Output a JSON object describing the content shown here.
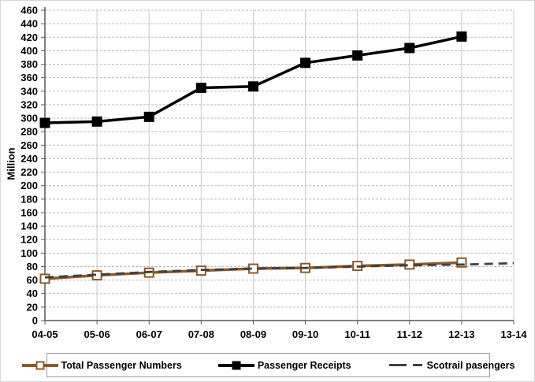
{
  "chart_data": {
    "type": "line",
    "title": "",
    "xlabel": "",
    "ylabel": "Million",
    "ylim": [
      0,
      460
    ],
    "ytick_step": 20,
    "yticks": [
      0,
      20,
      40,
      60,
      80,
      100,
      120,
      140,
      160,
      180,
      200,
      220,
      240,
      260,
      280,
      300,
      320,
      340,
      360,
      380,
      400,
      420,
      440,
      460
    ],
    "grid": "horizontal dashed, vertical solid",
    "legend_position": "bottom",
    "categories": [
      "04-05",
      "05-06",
      "06-07",
      "07-08",
      "08-09",
      "09-10",
      "10-11",
      "11-12",
      "12-13",
      "13-14"
    ],
    "series": [
      {
        "name": "Total Passenger Numbers",
        "color": "#8c5a28",
        "marker": "square-open",
        "dash": null,
        "width": 3.5,
        "values": [
          62,
          67,
          71,
          74,
          77,
          78,
          81,
          83,
          86,
          null
        ]
      },
      {
        "name": "Passenger Receipts",
        "color": "#000000",
        "marker": "square-filled",
        "dash": null,
        "width": 3.5,
        "values": [
          293,
          295,
          302,
          345,
          347,
          382,
          393,
          404,
          421,
          null
        ]
      },
      {
        "name": "Scotrail pasengers",
        "color": "#3f3f3f",
        "marker": "none",
        "dash": "11,7",
        "width": 2.8,
        "values": [
          64,
          68,
          72,
          75,
          77,
          78,
          80,
          82,
          83,
          85
        ]
      }
    ]
  },
  "axis_colors": {
    "axis_line": "#595959",
    "h_grid": "#b8b8b8",
    "v_grid": "#c9c9c9"
  }
}
